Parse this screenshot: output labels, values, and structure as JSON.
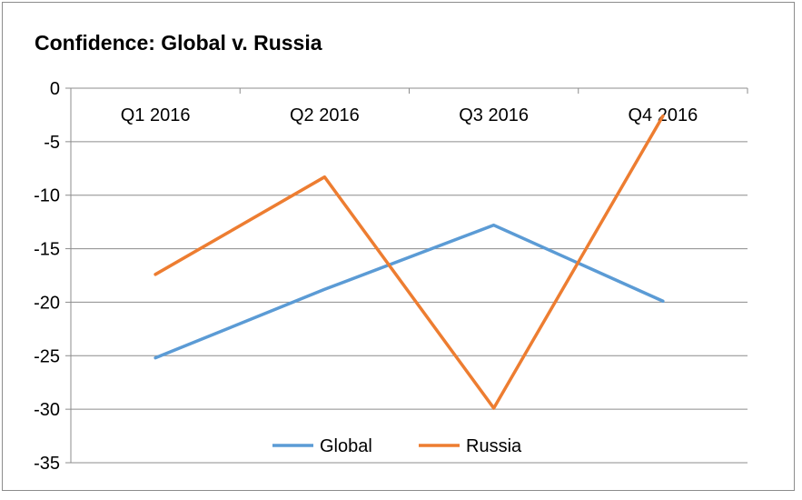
{
  "chart_data": {
    "type": "line",
    "title": "Confidence: Global v. Russia",
    "categories": [
      "Q1 2016",
      "Q2 2016",
      "Q3 2016",
      "Q4 2016"
    ],
    "series": [
      {
        "name": "Global",
        "values": [
          -25.2,
          -18.8,
          -12.8,
          -19.9
        ],
        "color": "#5b9bd5"
      },
      {
        "name": "Russia",
        "values": [
          -17.4,
          -8.3,
          -29.9,
          -2.6
        ],
        "color": "#ed7d31"
      }
    ],
    "ylim": [
      -35,
      0
    ],
    "yticks": [
      0,
      -5,
      -10,
      -15,
      -20,
      -25,
      -30,
      -35
    ],
    "grid": true,
    "legend_position": "bottom",
    "xlabel": "",
    "ylabel": ""
  }
}
